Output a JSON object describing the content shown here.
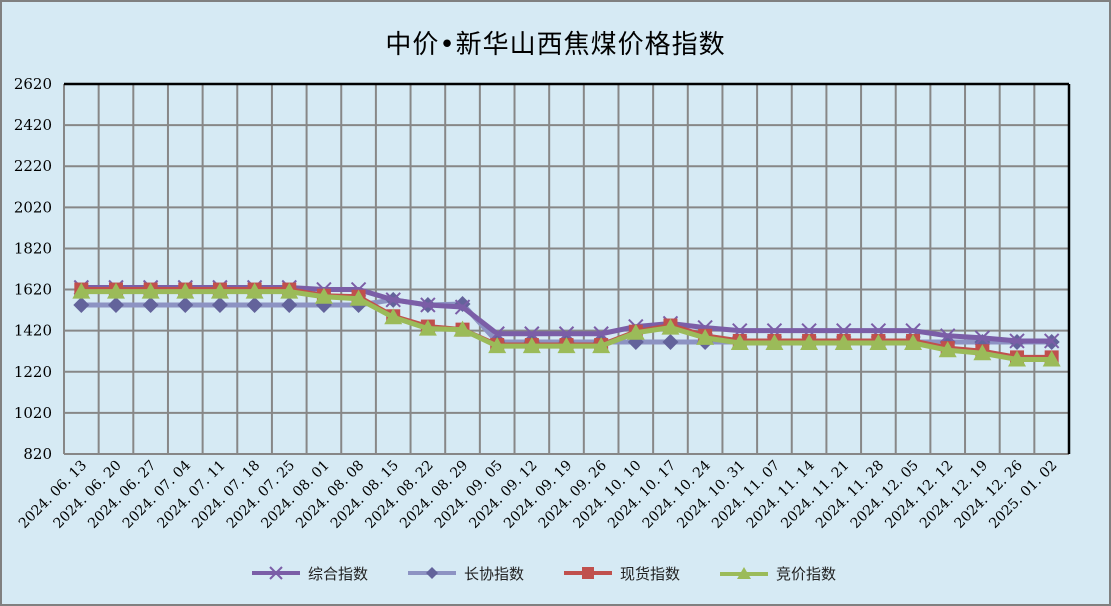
{
  "title": "中价•新华山西焦煤价格指数",
  "legend": [
    {
      "label": "综合指数",
      "color": "#7b5ea7",
      "marker": "x"
    },
    {
      "label": "长协指数",
      "color": "#8d93c3",
      "marker": "diamond",
      "marker_color": "#63639b"
    },
    {
      "label": "现货指数",
      "color": "#c0504d",
      "marker": "square"
    },
    {
      "label": "竞价指数",
      "color": "#9bbb59",
      "marker": "triangle"
    }
  ],
  "chart_data": {
    "type": "line",
    "title": "中价•新华山西焦煤价格指数",
    "xlabel": "",
    "ylabel": "",
    "ylim": [
      820,
      2620
    ],
    "yticks": [
      820,
      1020,
      1220,
      1420,
      1620,
      1820,
      2020,
      2220,
      2420,
      2620
    ],
    "grid": true,
    "legend_position": "bottom",
    "categories": [
      "2024.06.13",
      "2024.06.20",
      "2024.06.27",
      "2024.07.04",
      "2024.07.11",
      "2024.07.18",
      "2024.07.25",
      "2024.08.01",
      "2024.08.08",
      "2024.08.15",
      "2024.08.22",
      "2024.08.29",
      "2024.09.05",
      "2024.09.12",
      "2024.09.19",
      "2024.09.26",
      "2024.10.10",
      "2024.10.17",
      "2024.10.24",
      "2024.10.31",
      "2024.11.07",
      "2024.11.14",
      "2024.11.21",
      "2024.11.28",
      "2024.12.05",
      "2024.12.12",
      "2024.12.19",
      "2024.12.26",
      "2025.01.02"
    ],
    "series": [
      {
        "name": "综合指数",
        "color": "#7b5ea7",
        "values": [
          1630,
          1630,
          1630,
          1630,
          1630,
          1630,
          1630,
          1620,
          1620,
          1570,
          1545,
          1535,
          1405,
          1405,
          1405,
          1405,
          1440,
          1455,
          1435,
          1420,
          1420,
          1420,
          1420,
          1420,
          1420,
          1395,
          1385,
          1370,
          1370
        ]
      },
      {
        "name": "长协指数",
        "color": "#8d93c3",
        "values": [
          1545,
          1545,
          1545,
          1545,
          1545,
          1545,
          1545,
          1545,
          1545,
          1570,
          1545,
          1550,
          1365,
          1365,
          1365,
          1365,
          1365,
          1365,
          1365,
          1365,
          1365,
          1365,
          1365,
          1365,
          1365,
          1365,
          1365,
          1365,
          1365
        ]
      },
      {
        "name": "现货指数",
        "color": "#c0504d",
        "values": [
          1620,
          1620,
          1620,
          1620,
          1620,
          1620,
          1620,
          1590,
          1585,
          1490,
          1440,
          1425,
          1350,
          1350,
          1350,
          1350,
          1415,
          1445,
          1395,
          1370,
          1370,
          1370,
          1370,
          1370,
          1370,
          1335,
          1320,
          1290,
          1290
        ]
      },
      {
        "name": "竞价指数",
        "color": "#9bbb59",
        "values": [
          1610,
          1610,
          1610,
          1610,
          1610,
          1610,
          1610,
          1585,
          1575,
          1485,
          1430,
          1425,
          1345,
          1345,
          1345,
          1345,
          1410,
          1435,
          1385,
          1360,
          1360,
          1360,
          1360,
          1360,
          1360,
          1325,
          1310,
          1280,
          1280
        ]
      }
    ]
  }
}
